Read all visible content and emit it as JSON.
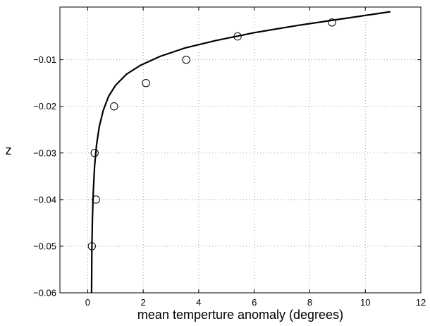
{
  "chart_data": {
    "type": "scatter",
    "title": "",
    "xlabel": "mean temperture anomaly (degrees)",
    "ylabel": "z",
    "xlim": [
      -1,
      12
    ],
    "ylim": [
      -0.06,
      0.0013
    ],
    "xticks": [
      0,
      2,
      4,
      6,
      8,
      10,
      12
    ],
    "xtick_labels": [
      "0",
      "2",
      "4",
      "6",
      "8",
      "10",
      "12"
    ],
    "yticks": [
      -0.06,
      -0.05,
      -0.04,
      -0.03,
      -0.02,
      -0.01
    ],
    "ytick_labels": [
      "−0.06",
      "−0.05",
      "−0.04",
      "−0.03",
      "−0.02",
      "−0.01"
    ],
    "grid": true,
    "series": [
      {
        "kind": "markers",
        "marker": "open-circle",
        "x": [
          0.15,
          0.3,
          0.25,
          0.95,
          2.1,
          3.55,
          5.4,
          8.8
        ],
        "y": [
          -0.05,
          -0.04,
          -0.03,
          -0.02,
          -0.015,
          -0.01,
          -0.005,
          -0.002
        ]
      },
      {
        "kind": "line",
        "x": [
          0.14,
          0.15,
          0.17,
          0.2,
          0.25,
          0.32,
          0.42,
          0.56,
          0.75,
          1.0,
          1.4,
          1.9,
          2.6,
          3.5,
          4.6,
          6.0,
          7.6,
          9.2,
          10.9
        ],
        "y": [
          -0.06,
          -0.0508,
          -0.0442,
          -0.0384,
          -0.0328,
          -0.0282,
          -0.0243,
          -0.0209,
          -0.0179,
          -0.0155,
          -0.0131,
          -0.0112,
          -0.0093,
          -0.0075,
          -0.0059,
          -0.0042,
          -0.0026,
          -0.0012,
          0.0003
        ]
      }
    ]
  }
}
